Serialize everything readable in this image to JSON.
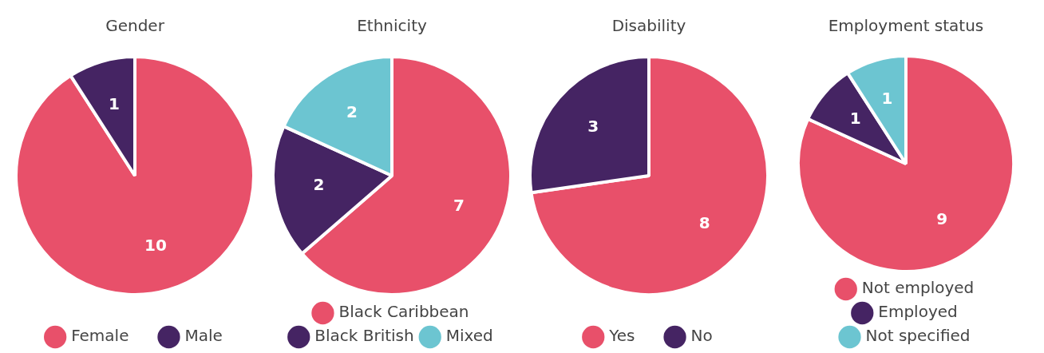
{
  "chart_data": [
    {
      "type": "pie",
      "title": "Gender",
      "categories": [
        "Female",
        "Male"
      ],
      "values": [
        10,
        1
      ],
      "colors": [
        "#e8506a",
        "#452463"
      ],
      "data_labels": true,
      "legend": "bottom"
    },
    {
      "type": "pie",
      "title": "Ethnicity",
      "categories": [
        "Black Caribbean",
        "Black British",
        "Mixed"
      ],
      "values": [
        7,
        2,
        2
      ],
      "colors": [
        "#e8506a",
        "#452463",
        "#6cc5d1"
      ],
      "data_labels": true,
      "legend": "bottom"
    },
    {
      "type": "pie",
      "title": "Disability",
      "categories": [
        "Yes",
        "No"
      ],
      "values": [
        8,
        3
      ],
      "colors": [
        "#e8506a",
        "#452463"
      ],
      "data_labels": true,
      "legend": "bottom"
    },
    {
      "type": "pie",
      "title": "Employment status",
      "categories": [
        "Not employed",
        "Employed",
        "Not specified"
      ],
      "values": [
        9,
        1,
        1
      ],
      "colors": [
        "#e8506a",
        "#452463",
        "#6cc5d1"
      ],
      "data_labels": true,
      "legend": "bottom"
    }
  ]
}
